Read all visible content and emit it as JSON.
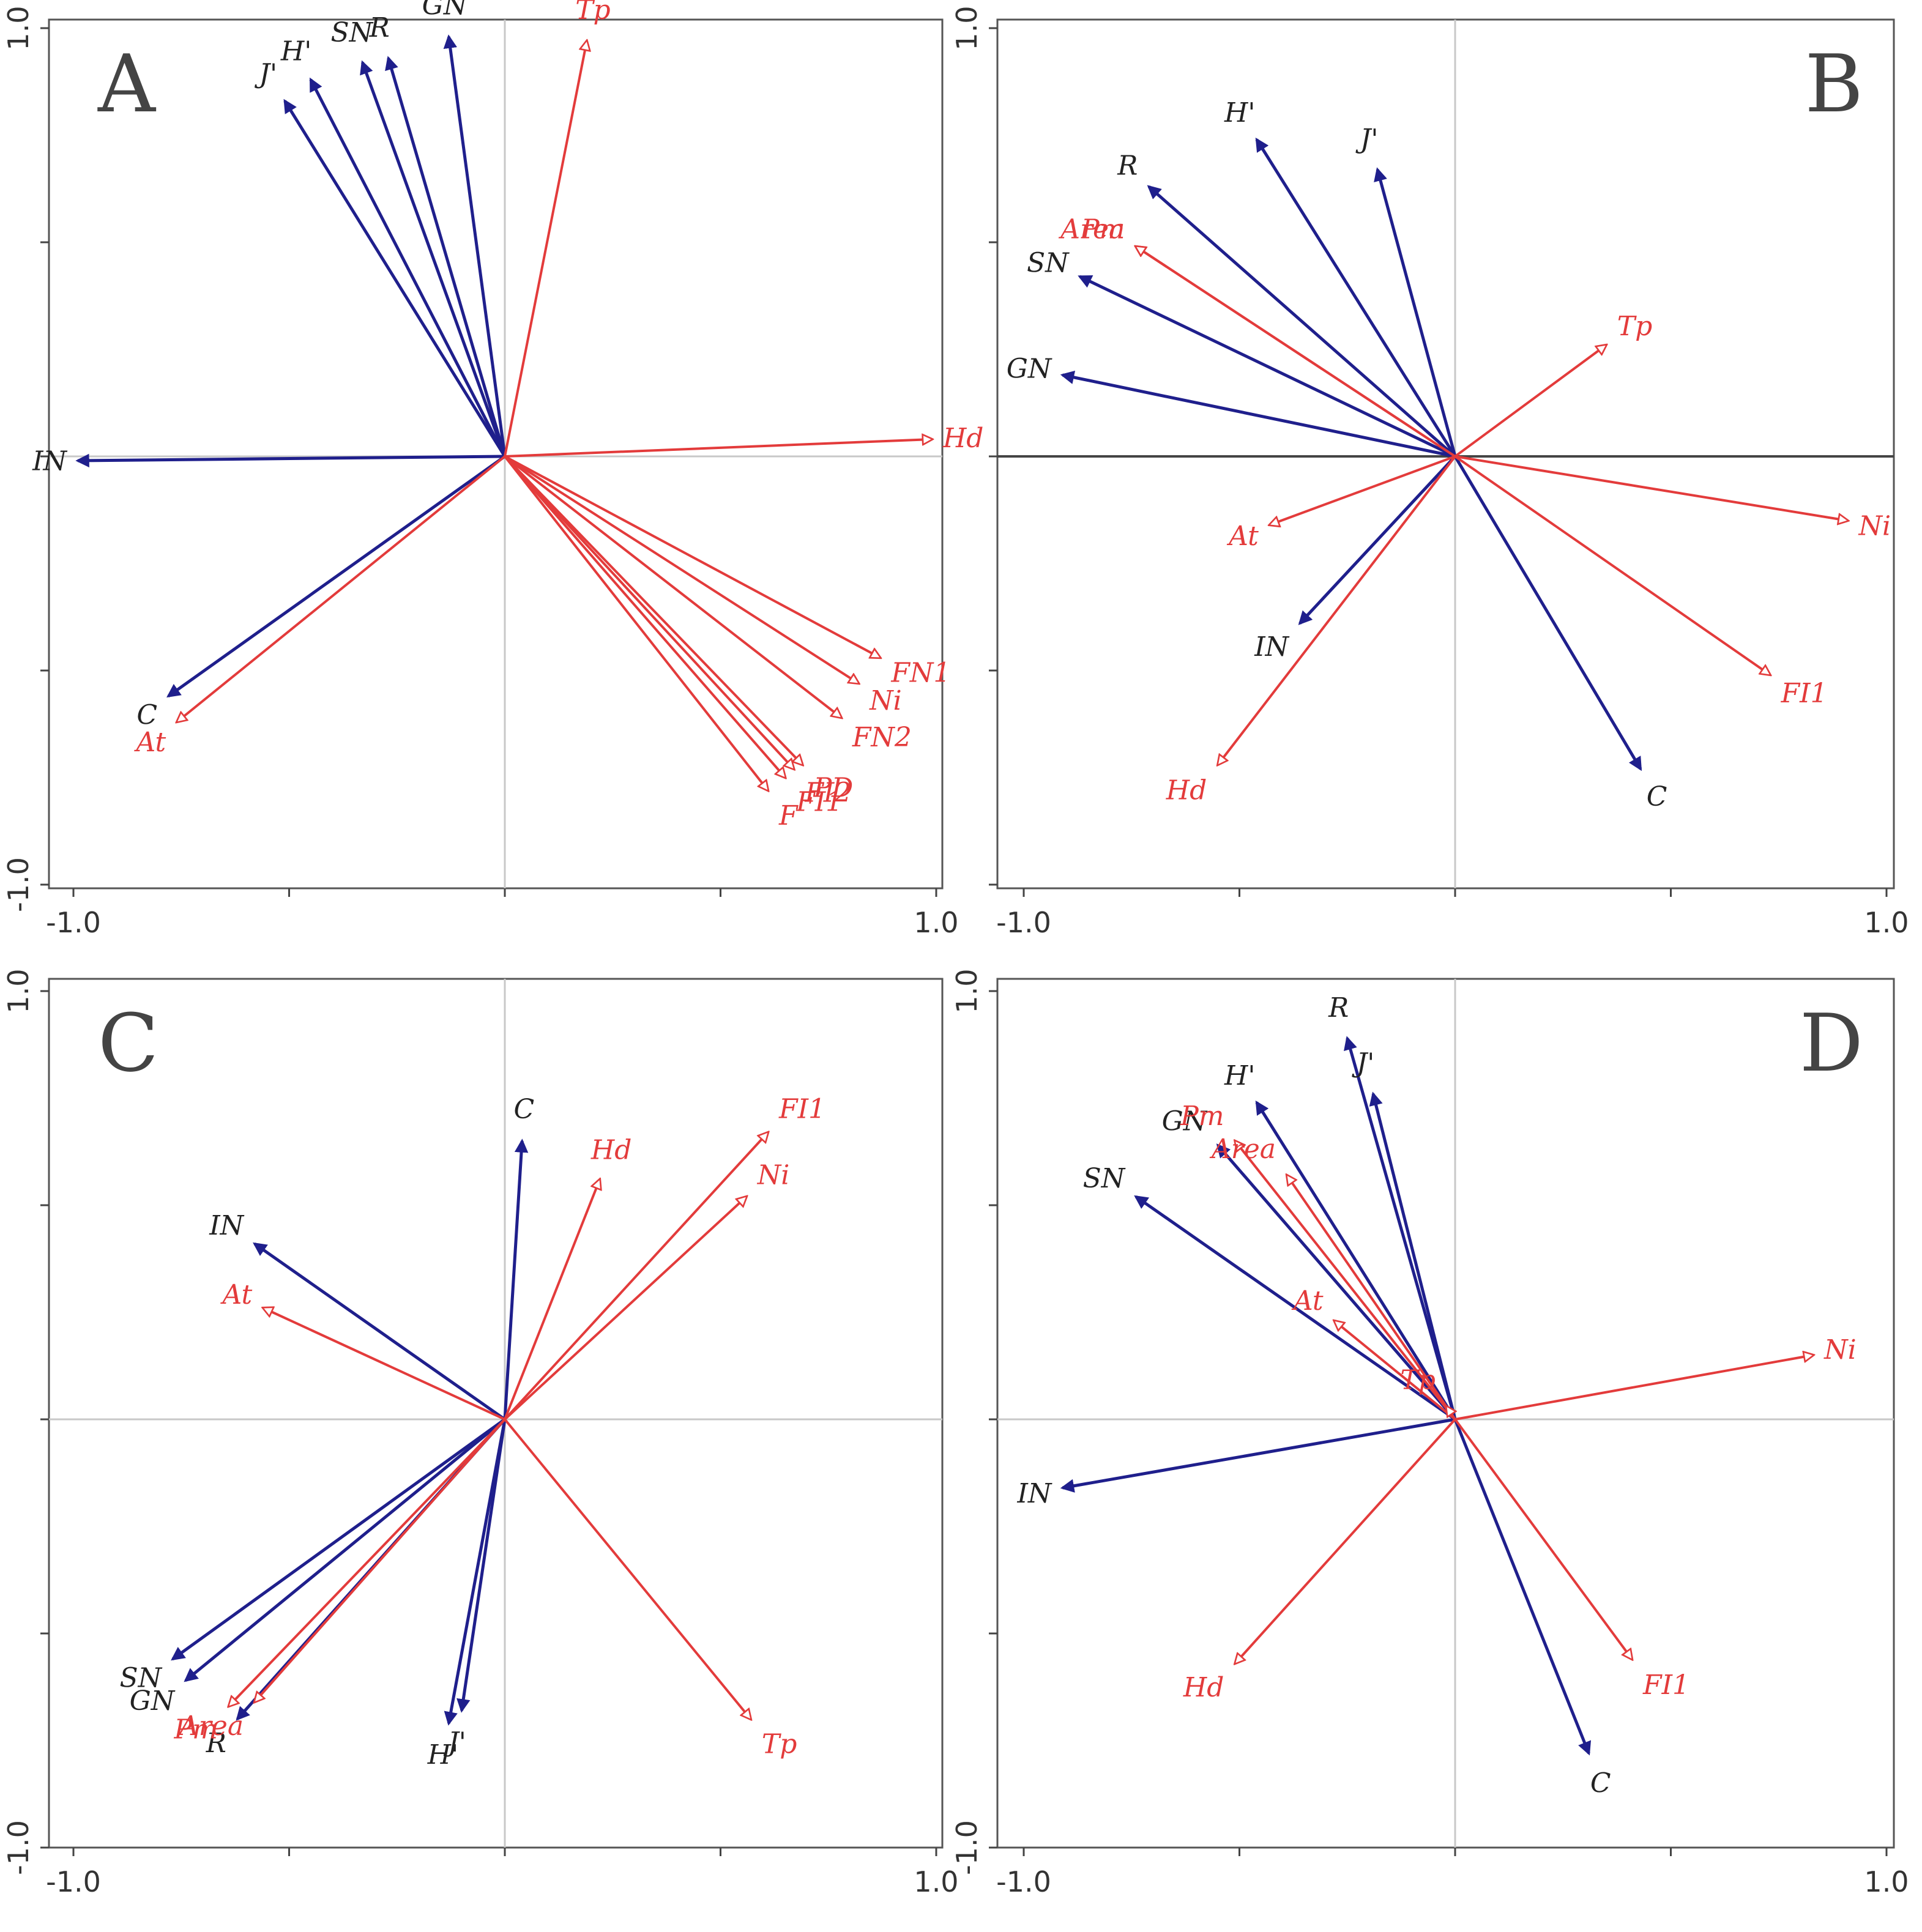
{
  "chart_data": [
    {
      "type": "ordination-biplot",
      "panel": "A",
      "xlim": [
        -1.0,
        1.0
      ],
      "ylim": [
        -1.0,
        1.0
      ],
      "x_tick_labels": [
        "-1.0",
        "1.0"
      ],
      "y_tick_labels": [
        "1.0",
        "-1.0"
      ],
      "horizontal_reference_emphasis": false,
      "series": [
        {
          "name": "species",
          "color": "#1f1f8c",
          "vectors": [
            {
              "label": "J'",
              "x": -0.51,
              "y": 0.83
            },
            {
              "label": "H'",
              "x": -0.45,
              "y": 0.88
            },
            {
              "label": "SN",
              "x": -0.33,
              "y": 0.92
            },
            {
              "label": "R",
              "x": -0.27,
              "y": 0.93
            },
            {
              "label": "GN",
              "x": -0.13,
              "y": 0.98
            },
            {
              "label": "IN",
              "x": -0.99,
              "y": -0.01
            },
            {
              "label": "C",
              "x": -0.78,
              "y": -0.56
            }
          ]
        },
        {
          "name": "environment",
          "color": "#e33b3b",
          "vectors": [
            {
              "label": "Tp",
              "x": 0.19,
              "y": 0.97
            },
            {
              "label": "Hd",
              "x": 0.99,
              "y": 0.04
            },
            {
              "label": "At",
              "x": -0.76,
              "y": -0.62
            },
            {
              "label": "FN1",
              "x": 0.87,
              "y": -0.47
            },
            {
              "label": "Ni",
              "x": 0.82,
              "y": -0.53
            },
            {
              "label": "FN2",
              "x": 0.78,
              "y": -0.61
            },
            {
              "label": "PD",
              "x": 0.69,
              "y": -0.72
            },
            {
              "label": "FI2",
              "x": 0.67,
              "y": -0.73
            },
            {
              "label": "FI1",
              "x": 0.65,
              "y": -0.75
            },
            {
              "label": "F",
              "x": 0.61,
              "y": -0.78
            }
          ]
        }
      ]
    },
    {
      "type": "ordination-biplot",
      "panel": "B",
      "xlim": [
        -1.0,
        1.0
      ],
      "ylim": [
        -1.0,
        1.0
      ],
      "x_tick_labels": [
        "-1.0",
        "1.0"
      ],
      "y_tick_labels": [
        "1.0"
      ],
      "horizontal_reference_emphasis": true,
      "series": [
        {
          "name": "species",
          "color": "#1f1f8c",
          "vectors": [
            {
              "label": "H'",
              "x": -0.46,
              "y": 0.74
            },
            {
              "label": "J'",
              "x": -0.18,
              "y": 0.67
            },
            {
              "label": "R",
              "x": -0.71,
              "y": 0.63
            },
            {
              "label": "SN",
              "x": -0.87,
              "y": 0.42
            },
            {
              "label": "GN",
              "x": -0.91,
              "y": 0.19
            },
            {
              "label": "IN",
              "x": -0.36,
              "y": -0.39
            },
            {
              "label": "C",
              "x": 0.43,
              "y": -0.73
            }
          ]
        },
        {
          "name": "environment",
          "color": "#e33b3b",
          "vectors": [
            {
              "label": "Area",
              "x": -0.74,
              "y": 0.49
            },
            {
              "label": "Pm",
              "x": -0.74,
              "y": 0.49
            },
            {
              "label": "Tp",
              "x": 0.35,
              "y": 0.26
            },
            {
              "label": "At",
              "x": -0.43,
              "y": -0.16
            },
            {
              "label": "Ni",
              "x": 0.91,
              "y": -0.15
            },
            {
              "label": "FI1",
              "x": 0.73,
              "y": -0.51
            },
            {
              "label": "Hd",
              "x": -0.55,
              "y": -0.72
            }
          ]
        }
      ]
    },
    {
      "type": "ordination-biplot",
      "panel": "C",
      "xlim": [
        -1.0,
        1.0
      ],
      "ylim": [
        -1.0,
        1.0
      ],
      "x_tick_labels": [
        "-1.0",
        "1.0"
      ],
      "y_tick_labels": [
        "1.0",
        "-1.0"
      ],
      "horizontal_reference_emphasis": false,
      "series": [
        {
          "name": "species",
          "color": "#1f1f8c",
          "vectors": [
            {
              "label": "C",
              "x": 0.04,
              "y": 0.65
            },
            {
              "label": "IN",
              "x": -0.58,
              "y": 0.41
            },
            {
              "label": "SN",
              "x": -0.77,
              "y": -0.56
            },
            {
              "label": "GN",
              "x": -0.74,
              "y": -0.61
            },
            {
              "label": "R",
              "x": -0.62,
              "y": -0.7
            },
            {
              "label": "J'",
              "x": -0.1,
              "y": -0.68
            },
            {
              "label": "H'",
              "x": -0.13,
              "y": -0.71
            }
          ]
        },
        {
          "name": "environment",
          "color": "#e33b3b",
          "vectors": [
            {
              "label": "Hd",
              "x": 0.22,
              "y": 0.56
            },
            {
              "label": "FI1",
              "x": 0.61,
              "y": 0.67
            },
            {
              "label": "Ni",
              "x": 0.56,
              "y": 0.52
            },
            {
              "label": "At",
              "x": -0.56,
              "y": 0.26
            },
            {
              "label": "Area",
              "x": -0.58,
              "y": -0.66
            },
            {
              "label": "Pm",
              "x": -0.64,
              "y": -0.67
            },
            {
              "label": "Tp",
              "x": 0.57,
              "y": -0.7
            }
          ]
        }
      ]
    },
    {
      "type": "ordination-biplot",
      "panel": "D",
      "xlim": [
        -1.0,
        1.0
      ],
      "ylim": [
        -1.0,
        1.0
      ],
      "x_tick_labels": [
        "-1.0",
        "1.0"
      ],
      "y_tick_labels": [
        "1.0",
        "-1.0"
      ],
      "horizontal_reference_emphasis": false,
      "series": [
        {
          "name": "species",
          "color": "#1f1f8c",
          "vectors": [
            {
              "label": "R",
              "x": -0.25,
              "y": 0.89
            },
            {
              "label": "J'",
              "x": -0.19,
              "y": 0.76
            },
            {
              "label": "H'",
              "x": -0.46,
              "y": 0.74
            },
            {
              "label": "GN",
              "x": -0.55,
              "y": 0.64
            },
            {
              "label": "SN",
              "x": -0.74,
              "y": 0.52
            },
            {
              "label": "IN",
              "x": -0.91,
              "y": -0.16
            },
            {
              "label": "C",
              "x": 0.31,
              "y": -0.78
            }
          ]
        },
        {
          "name": "environment",
          "color": "#e33b3b",
          "vectors": [
            {
              "label": "Pm",
              "x": -0.51,
              "y": 0.65
            },
            {
              "label": "Area",
              "x": -0.39,
              "y": 0.57
            },
            {
              "label": "At",
              "x": -0.28,
              "y": 0.23
            },
            {
              "label": "Tp",
              "x": -0.02,
              "y": 0.03
            },
            {
              "label": "Ni",
              "x": 0.83,
              "y": 0.15
            },
            {
              "label": "Hd",
              "x": -0.51,
              "y": -0.57
            },
            {
              "label": "FI1",
              "x": 0.41,
              "y": -0.56
            }
          ]
        }
      ]
    }
  ]
}
